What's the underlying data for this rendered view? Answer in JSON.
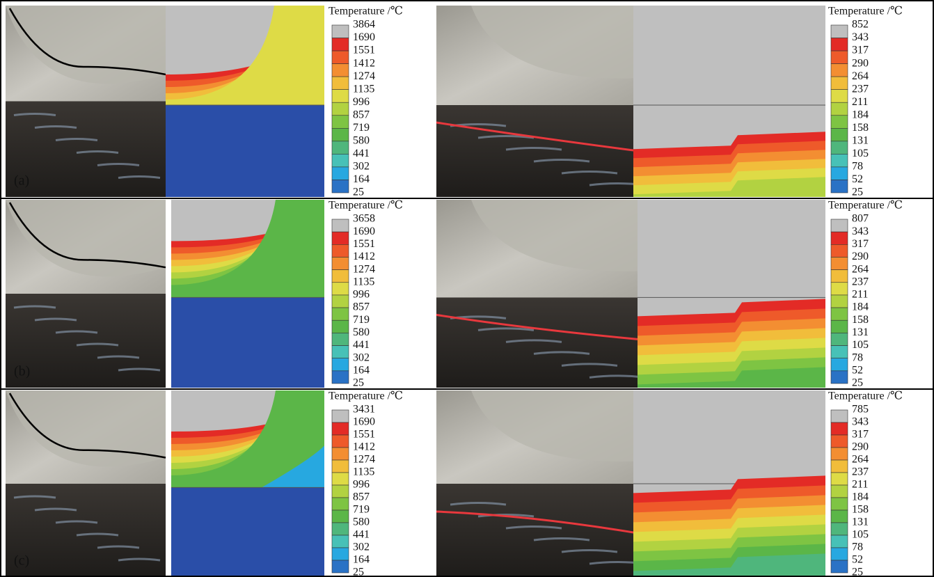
{
  "panels": [
    {
      "label": "(a)",
      "left": {
        "legend_title": "Temperature /℃",
        "levels": [
          3864,
          1690,
          1551,
          1412,
          1274,
          1135,
          996,
          857,
          719,
          580,
          441,
          302,
          164,
          25
        ]
      },
      "right": {
        "legend_title": "Temperature /℃",
        "levels": [
          852,
          343,
          317,
          290,
          264,
          237,
          211,
          184,
          158,
          131,
          105,
          78,
          52,
          25
        ]
      }
    },
    {
      "label": "(b)",
      "left": {
        "legend_title": "Temperature /℃",
        "levels": [
          3658,
          1690,
          1551,
          1412,
          1274,
          1135,
          996,
          857,
          719,
          580,
          441,
          302,
          164,
          25
        ]
      },
      "right": {
        "legend_title": "Temperature /℃",
        "levels": [
          807,
          343,
          317,
          290,
          264,
          237,
          211,
          184,
          158,
          131,
          105,
          78,
          52,
          25
        ]
      }
    },
    {
      "label": "(c)",
      "left": {
        "legend_title": "Temperature /℃",
        "levels": [
          3431,
          1690,
          1551,
          1412,
          1274,
          1135,
          996,
          857,
          719,
          580,
          441,
          302,
          164,
          25
        ]
      },
      "right": {
        "legend_title": "Temperature /℃",
        "levels": [
          785,
          343,
          317,
          290,
          264,
          237,
          211,
          184,
          158,
          131,
          105,
          78,
          52,
          25
        ]
      }
    }
  ]
}
